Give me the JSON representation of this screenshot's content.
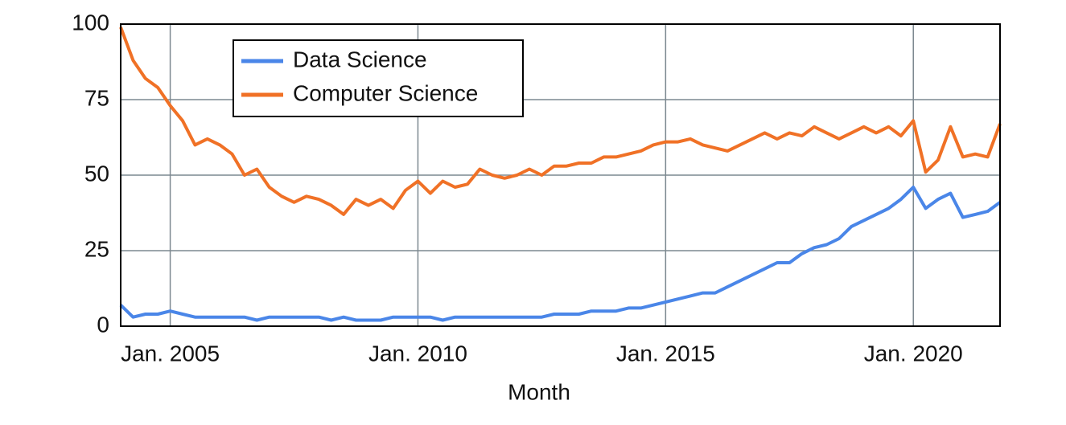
{
  "chart_data": {
    "type": "line",
    "x_label": "Month",
    "x": [
      2004,
      2004.25,
      2004.5,
      2004.75,
      2005,
      2005.25,
      2005.5,
      2005.75,
      2006,
      2006.25,
      2006.5,
      2006.75,
      2007,
      2007.25,
      2007.5,
      2007.75,
      2008,
      2008.25,
      2008.5,
      2008.75,
      2009,
      2009.25,
      2009.5,
      2009.75,
      2010,
      2010.25,
      2010.5,
      2010.75,
      2011,
      2011.25,
      2011.5,
      2011.75,
      2012,
      2012.25,
      2012.5,
      2012.75,
      2013,
      2013.25,
      2013.5,
      2013.75,
      2014,
      2014.25,
      2014.5,
      2014.75,
      2015,
      2015.25,
      2015.5,
      2015.75,
      2016,
      2016.25,
      2016.5,
      2016.75,
      2017,
      2017.25,
      2017.5,
      2017.75,
      2018,
      2018.25,
      2018.5,
      2018.75,
      2019,
      2019.25,
      2019.5,
      2019.75,
      2020,
      2020.25,
      2020.5,
      2020.75,
      2021,
      2021.25,
      2021.5,
      2021.75
    ],
    "series": [
      {
        "name": "Data Science",
        "color": "#4a86e8",
        "values": [
          7,
          3,
          4,
          4,
          5,
          4,
          3,
          3,
          3,
          3,
          3,
          2,
          3,
          3,
          3,
          3,
          3,
          2,
          3,
          2,
          2,
          2,
          3,
          3,
          3,
          3,
          2,
          3,
          3,
          3,
          3,
          3,
          3,
          3,
          3,
          4,
          4,
          4,
          5,
          5,
          5,
          6,
          6,
          7,
          8,
          9,
          10,
          11,
          11,
          13,
          15,
          17,
          19,
          21,
          21,
          24,
          26,
          27,
          29,
          33,
          35,
          37,
          39,
          42,
          46,
          39,
          42,
          44,
          36,
          37,
          38,
          41
        ]
      },
      {
        "name": "Computer Science",
        "color": "#f07126",
        "values": [
          99,
          88,
          82,
          79,
          73,
          68,
          60,
          62,
          60,
          57,
          50,
          52,
          46,
          43,
          41,
          43,
          42,
          40,
          37,
          42,
          40,
          42,
          39,
          45,
          48,
          44,
          48,
          46,
          47,
          52,
          50,
          49,
          50,
          52,
          50,
          53,
          53,
          54,
          54,
          56,
          56,
          57,
          58,
          60,
          61,
          61,
          62,
          60,
          59,
          58,
          60,
          62,
          64,
          62,
          64,
          63,
          66,
          64,
          62,
          64,
          66,
          64,
          66,
          63,
          68,
          51,
          55,
          66,
          56,
          57,
          56,
          67
        ]
      }
    ],
    "xlim": [
      2004,
      2021.75
    ],
    "xticks": [
      {
        "value": 2005,
        "label": "Jan. 2005"
      },
      {
        "value": 2010,
        "label": "Jan. 2010"
      },
      {
        "value": 2015,
        "label": "Jan. 2015"
      },
      {
        "value": 2020,
        "label": "Jan. 2020"
      }
    ],
    "ylim": [
      0,
      100
    ],
    "yticks": [
      0,
      25,
      50,
      75,
      100
    ],
    "grid": true,
    "legend": "upper-left"
  }
}
